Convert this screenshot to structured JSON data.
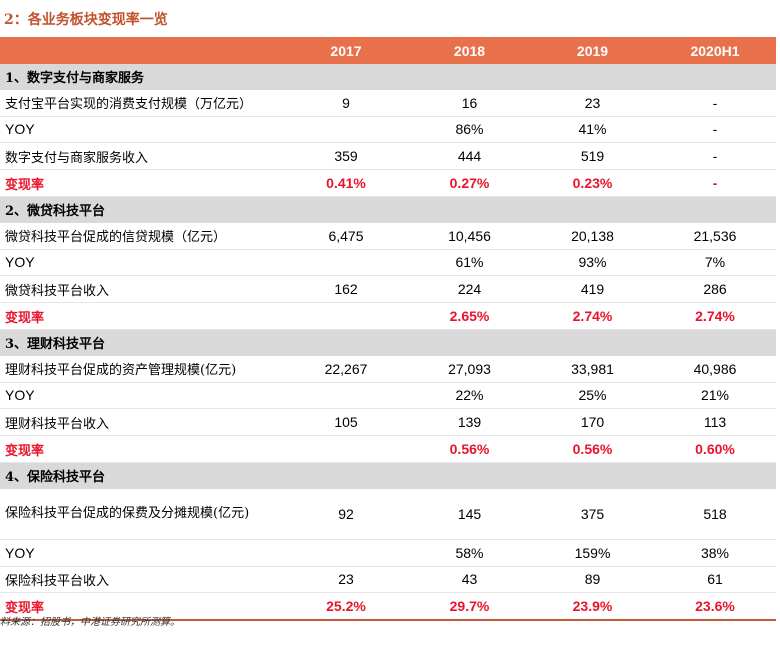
{
  "title": "2：各业务板块变现率一览",
  "header": [
    "",
    "2017",
    "2018",
    "2019",
    "2020H1"
  ],
  "sections": [
    {
      "name": "1、数字支付与商家服务",
      "rows": [
        {
          "label": "支付宝平台实现的消费支付规模（万亿元）",
          "values": [
            "9",
            "16",
            "23",
            "-"
          ]
        },
        {
          "label": "YOY",
          "values": [
            "",
            "86%",
            "41%",
            "-"
          ]
        },
        {
          "label": "数字支付与商家服务收入",
          "values": [
            "359",
            "444",
            "519",
            "-"
          ]
        },
        {
          "label": "变现率",
          "values": [
            "0.41%",
            "0.27%",
            "0.23%",
            "-"
          ]
        }
      ]
    },
    {
      "name": "2、微贷科技平台",
      "rows": [
        {
          "label": "微贷科技平台促成的信贷规模（亿元）",
          "values": [
            "6,475",
            "10,456",
            "20,138",
            "21,536"
          ]
        },
        {
          "label": "YOY",
          "values": [
            "",
            "61%",
            "93%",
            "7%"
          ]
        },
        {
          "label": "微贷科技平台收入",
          "values": [
            "162",
            "224",
            "419",
            "286"
          ]
        },
        {
          "label": "变现率",
          "values": [
            "",
            "2.65%",
            "2.74%",
            "2.74%"
          ]
        }
      ]
    },
    {
      "name": "3、理财科技平台",
      "rows": [
        {
          "label": "理财科技平台促成的资产管理规模(亿元)",
          "values": [
            "22,267",
            "27,093",
            "33,981",
            "40,986"
          ]
        },
        {
          "label": "YOY",
          "values": [
            "",
            "22%",
            "25%",
            "21%"
          ]
        },
        {
          "label": "理财科技平台收入",
          "values": [
            "105",
            "139",
            "170",
            "113"
          ]
        },
        {
          "label": "变现率",
          "values": [
            "",
            "0.56%",
            "0.56%",
            "0.60%"
          ]
        }
      ]
    },
    {
      "name": "4、保险科技平台",
      "rows": [
        {
          "label": "保险科技平台促成的保费及分摊规模(亿元)",
          "values": [
            "92",
            "145",
            "375",
            "518"
          ]
        },
        {
          "label": "YOY",
          "values": [
            "",
            "58%",
            "159%",
            "38%"
          ]
        },
        {
          "label": "保险科技平台收入",
          "values": [
            "23",
            "43",
            "89",
            "61"
          ]
        },
        {
          "label": "变现率",
          "values": [
            "25.2%",
            "29.7%",
            "23.9%",
            "23.6%"
          ]
        }
      ]
    }
  ],
  "source": "料来源：招股书，中港证券研究所测算。"
}
